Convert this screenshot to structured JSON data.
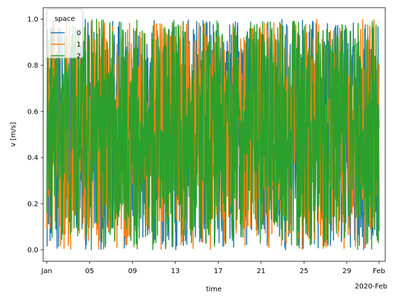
{
  "chart_data": {
    "type": "line",
    "xlabel": "time",
    "ylabel": "v [m/s]",
    "x_range": [
      "2020-01-01",
      "2020-02-01"
    ],
    "xlim": [
      "2019-12-31T16:00",
      "2020-02-01T14:00"
    ],
    "ylim": [
      -0.05,
      1.05
    ],
    "x_ticks": [
      "2020-01-01",
      "2020-01-05",
      "2020-01-09",
      "2020-01-13",
      "2020-01-17",
      "2020-01-21",
      "2020-01-25",
      "2020-01-29",
      "2020-02-01"
    ],
    "x_tick_labels": [
      "Jan",
      "05",
      "09",
      "13",
      "17",
      "21",
      "25",
      "29",
      "Feb"
    ],
    "x_offset_label": "2020-Feb",
    "y_ticks": [
      0.0,
      0.2,
      0.4,
      0.6,
      0.8,
      1.0
    ],
    "y_tick_labels": [
      "0.0",
      "0.2",
      "0.4",
      "0.6",
      "0.8",
      "1.0"
    ],
    "value_range": [
      0.0,
      1.0
    ],
    "legend": {
      "title": "space",
      "placement": "top-left"
    },
    "grid": false,
    "series": [
      {
        "name": "0",
        "color": "#1f77b4"
      },
      {
        "name": "1",
        "color": "#ff7f0e"
      },
      {
        "name": "2",
        "color": "#2ca02c"
      }
    ]
  }
}
